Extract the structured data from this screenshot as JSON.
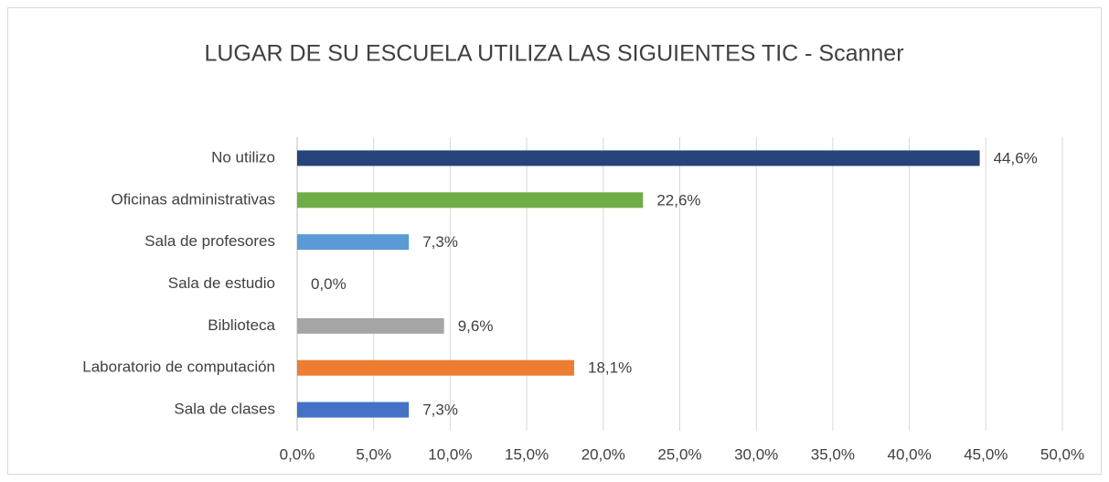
{
  "chart_data": {
    "type": "bar",
    "orientation": "horizontal",
    "title": "LUGAR DE SU ESCUELA UTILIZA LAS SIGUIENTES TIC - Scanner",
    "categories": [
      "No utilizo",
      "Oficinas administrativas",
      "Sala de profesores",
      "Sala de estudio",
      "Biblioteca",
      "Laboratorio de computación",
      "Sala de clases"
    ],
    "values": [
      44.6,
      22.6,
      7.3,
      0.0,
      9.6,
      18.1,
      7.3
    ],
    "value_labels": [
      "44,6%",
      "22,6%",
      "7,3%",
      "0,0%",
      "9,6%",
      "18,1%",
      "7,3%"
    ],
    "colors": [
      "#264478",
      "#70ad47",
      "#5b9bd5",
      "#ffc000",
      "#a5a5a5",
      "#ed7d31",
      "#4472c4"
    ],
    "xlim": [
      0,
      50
    ],
    "xticks": [
      {
        "value": 0,
        "label": "0,0%"
      },
      {
        "value": 5,
        "label": "5,0%"
      },
      {
        "value": 10,
        "label": "10,0%"
      },
      {
        "value": 15,
        "label": "15,0%"
      },
      {
        "value": 20,
        "label": "20,0%"
      },
      {
        "value": 25,
        "label": "25,0%"
      },
      {
        "value": 30,
        "label": "30,0%"
      },
      {
        "value": 35,
        "label": "35,0%"
      },
      {
        "value": 40,
        "label": "40,0%"
      },
      {
        "value": 45,
        "label": "45,0%"
      },
      {
        "value": 50,
        "label": "50,0%"
      }
    ],
    "grid": true
  }
}
